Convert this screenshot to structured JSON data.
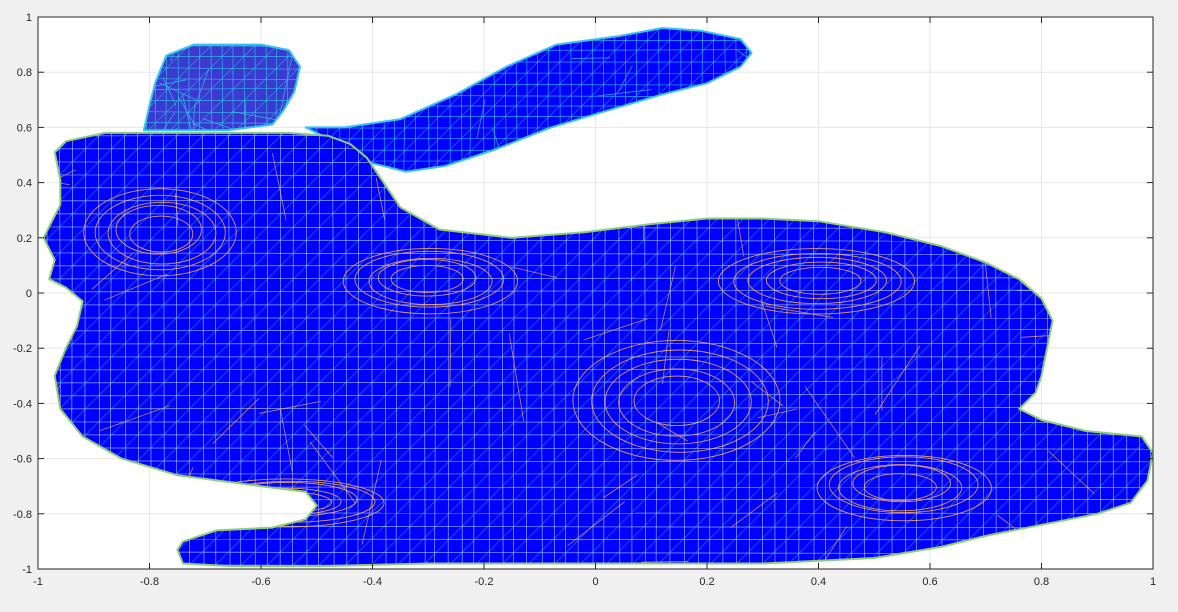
{
  "chart_data": {
    "type": "mesh-surface-view",
    "title": "",
    "xlabel": "",
    "ylabel": "",
    "xlim": [
      -1,
      1
    ],
    "ylim": [
      -1,
      1
    ],
    "grid": true,
    "x_ticks": [
      -1,
      -0.8,
      -0.6,
      -0.4,
      -0.2,
      0,
      0.2,
      0.4,
      0.6,
      0.8,
      1
    ],
    "y_ticks": [
      -1,
      -0.8,
      -0.6,
      -0.4,
      -0.2,
      0,
      0.2,
      0.4,
      0.6,
      0.8,
      1
    ],
    "colors": {
      "surface_face": "#0000ff",
      "mesh_edge_light": "#33c4f0",
      "mesh_edge_warm": "#ffb450",
      "silhouette_edge": "#8fcf70",
      "ear_shadow": "#3a3ad0"
    },
    "series": [
      {
        "part": "body",
        "outline": [
          [
            -0.97,
            0.12
          ],
          [
            -0.99,
            0.2
          ],
          [
            -0.96,
            0.32
          ],
          [
            -0.96,
            0.41
          ],
          [
            -0.97,
            0.51
          ],
          [
            -0.95,
            0.55
          ],
          [
            -0.88,
            0.58
          ],
          [
            -0.78,
            0.58
          ],
          [
            -0.66,
            0.58
          ],
          [
            -0.55,
            0.58
          ],
          [
            -0.48,
            0.57
          ],
          [
            -0.44,
            0.54
          ],
          [
            -0.41,
            0.49
          ],
          [
            -0.38,
            0.4
          ],
          [
            -0.35,
            0.31
          ],
          [
            -0.28,
            0.23
          ],
          [
            -0.15,
            0.2
          ],
          [
            -0.02,
            0.22
          ],
          [
            0.1,
            0.25
          ],
          [
            0.2,
            0.27
          ],
          [
            0.3,
            0.27
          ],
          [
            0.4,
            0.26
          ],
          [
            0.52,
            0.22
          ],
          [
            0.62,
            0.17
          ],
          [
            0.7,
            0.11
          ],
          [
            0.76,
            0.05
          ],
          [
            0.8,
            -0.02
          ],
          [
            0.82,
            -0.1
          ],
          [
            0.81,
            -0.2
          ],
          [
            0.8,
            -0.3
          ],
          [
            0.79,
            -0.36
          ],
          [
            0.76,
            -0.42
          ],
          [
            0.8,
            -0.46
          ],
          [
            0.88,
            -0.5
          ],
          [
            0.98,
            -0.52
          ],
          [
            1.0,
            -0.58
          ],
          [
            0.99,
            -0.68
          ],
          [
            0.96,
            -0.76
          ],
          [
            0.9,
            -0.8
          ],
          [
            0.8,
            -0.84
          ],
          [
            0.7,
            -0.88
          ],
          [
            0.62,
            -0.92
          ],
          [
            0.5,
            -0.96
          ],
          [
            0.3,
            -0.98
          ],
          [
            0.1,
            -0.98
          ],
          [
            -0.1,
            -0.98
          ],
          [
            -0.3,
            -0.98
          ],
          [
            -0.5,
            -0.99
          ],
          [
            -0.65,
            -0.99
          ],
          [
            -0.74,
            -0.98
          ],
          [
            -0.75,
            -0.93
          ],
          [
            -0.74,
            -0.9
          ],
          [
            -0.68,
            -0.86
          ],
          [
            -0.58,
            -0.85
          ],
          [
            -0.52,
            -0.82
          ],
          [
            -0.5,
            -0.77
          ],
          [
            -0.52,
            -0.72
          ],
          [
            -0.6,
            -0.7
          ],
          [
            -0.75,
            -0.66
          ],
          [
            -0.85,
            -0.6
          ],
          [
            -0.92,
            -0.52
          ],
          [
            -0.96,
            -0.42
          ],
          [
            -0.97,
            -0.3
          ],
          [
            -0.95,
            -0.2
          ],
          [
            -0.93,
            -0.12
          ],
          [
            -0.92,
            -0.03
          ],
          [
            -0.95,
            0.02
          ],
          [
            -0.98,
            0.05
          ]
        ]
      },
      {
        "part": "back-ear",
        "outline": [
          [
            -0.81,
            0.59
          ],
          [
            -0.8,
            0.68
          ],
          [
            -0.79,
            0.76
          ],
          [
            -0.77,
            0.86
          ],
          [
            -0.72,
            0.9
          ],
          [
            -0.6,
            0.9
          ],
          [
            -0.55,
            0.88
          ],
          [
            -0.53,
            0.82
          ],
          [
            -0.54,
            0.73
          ],
          [
            -0.56,
            0.66
          ],
          [
            -0.58,
            0.61
          ],
          [
            -0.66,
            0.59
          ]
        ]
      },
      {
        "part": "front-ear",
        "outline": [
          [
            -0.52,
            0.6
          ],
          [
            -0.45,
            0.6
          ],
          [
            -0.35,
            0.63
          ],
          [
            -0.25,
            0.72
          ],
          [
            -0.16,
            0.82
          ],
          [
            -0.07,
            0.9
          ],
          [
            0.04,
            0.93
          ],
          [
            0.12,
            0.96
          ],
          [
            0.19,
            0.95
          ],
          [
            0.26,
            0.92
          ],
          [
            0.28,
            0.87
          ],
          [
            0.26,
            0.82
          ],
          [
            0.2,
            0.76
          ],
          [
            0.12,
            0.72
          ],
          [
            0.02,
            0.66
          ],
          [
            -0.08,
            0.6
          ],
          [
            -0.18,
            0.52
          ],
          [
            -0.27,
            0.46
          ],
          [
            -0.34,
            0.44
          ],
          [
            -0.42,
            0.48
          ],
          [
            -0.47,
            0.55
          ]
        ]
      }
    ]
  }
}
